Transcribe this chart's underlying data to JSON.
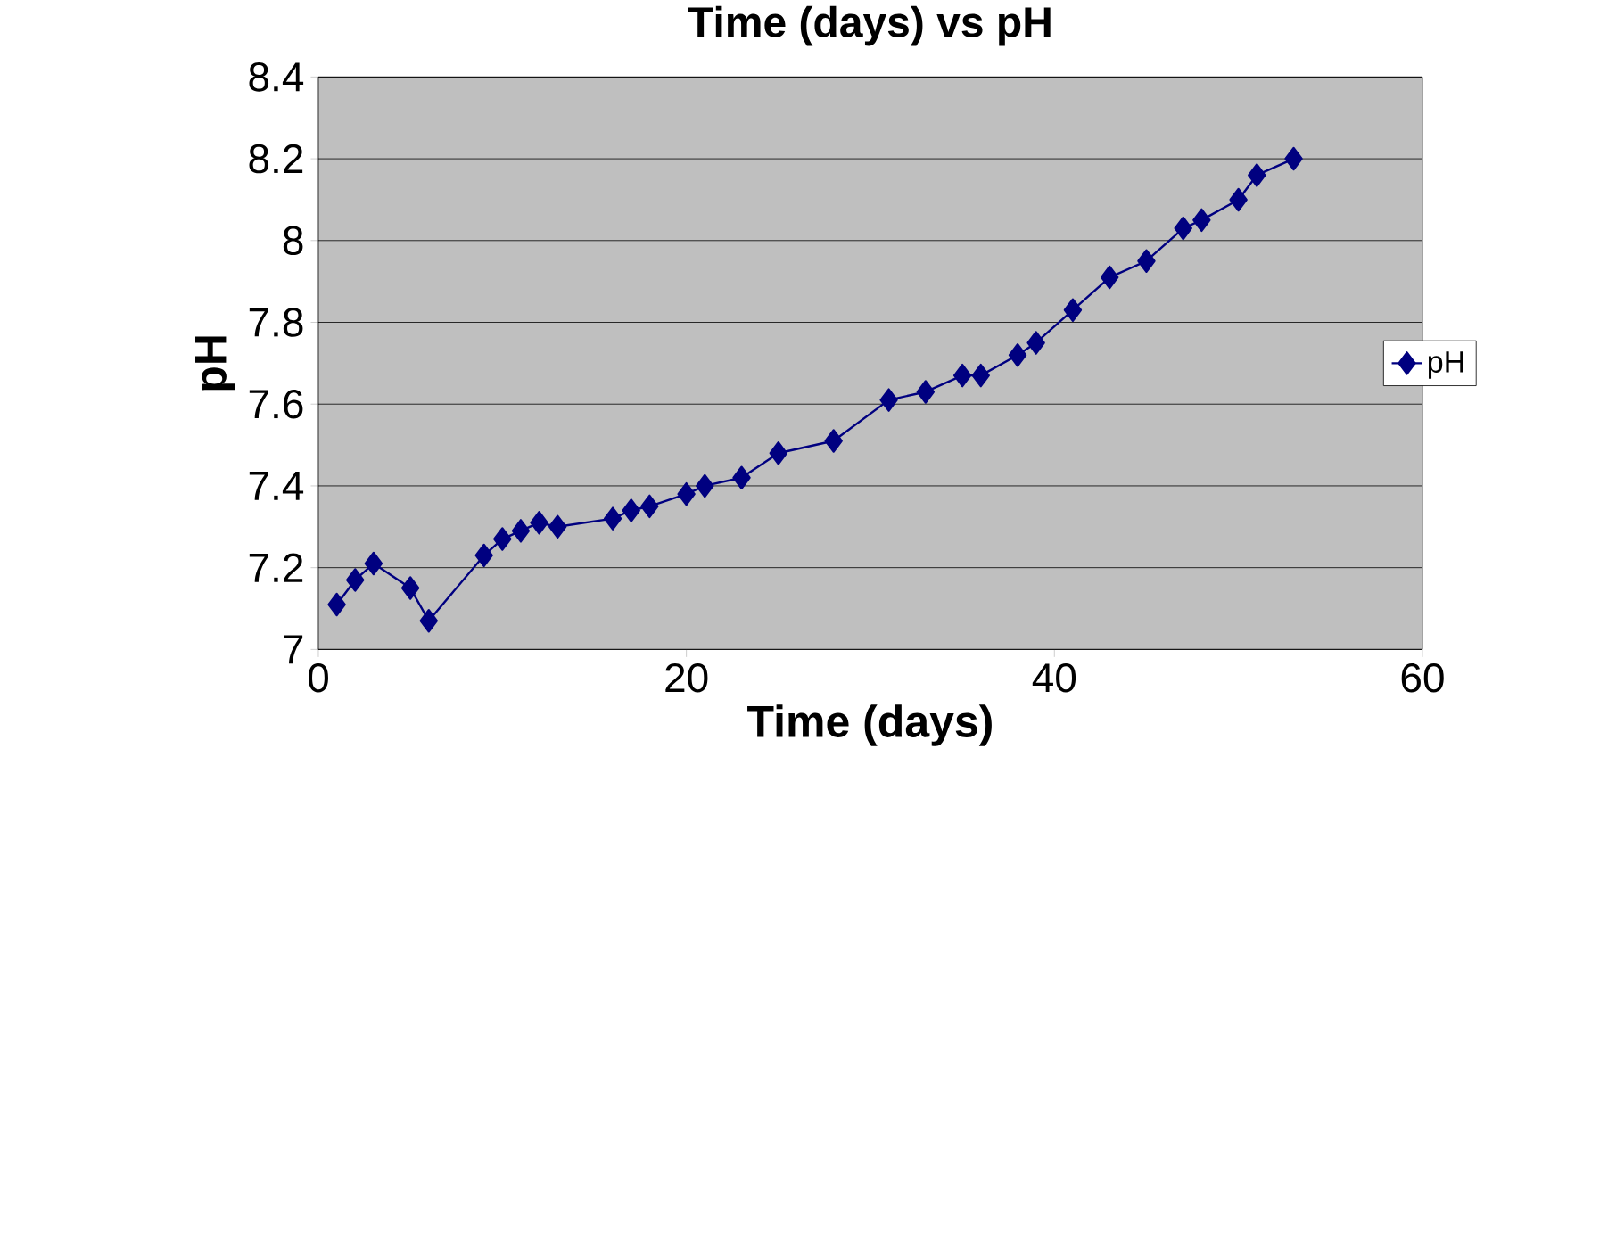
{
  "chart_data": {
    "type": "line",
    "title": "Time (days) vs pH",
    "xlabel": "Time (days)",
    "ylabel": "pH",
    "x": [
      1,
      2,
      3,
      5,
      6,
      9,
      10,
      11,
      12,
      13,
      16,
      17,
      18,
      20,
      21,
      23,
      25,
      28,
      31,
      33,
      35,
      36,
      38,
      39,
      41,
      43,
      45,
      47,
      48,
      50,
      51,
      53
    ],
    "series": [
      {
        "name": "pH",
        "color": "#000080",
        "values": [
          7.11,
          7.17,
          7.21,
          7.15,
          7.07,
          7.23,
          7.27,
          7.29,
          7.31,
          7.3,
          7.32,
          7.34,
          7.35,
          7.38,
          7.4,
          7.42,
          7.48,
          7.51,
          7.61,
          7.63,
          7.67,
          7.67,
          7.72,
          7.75,
          7.83,
          7.91,
          7.95,
          8.03,
          8.05,
          8.1,
          8.16,
          8.2
        ]
      }
    ],
    "xlim": [
      0,
      60
    ],
    "xticks": [
      0,
      20,
      40,
      60
    ],
    "ylim": [
      7,
      8.4
    ],
    "yticks": [
      7,
      7.2,
      7.4,
      7.6,
      7.8,
      8,
      8.2,
      8.4
    ],
    "grid": "y",
    "legend": "right",
    "marker": "diamond",
    "line_style": "solid"
  }
}
